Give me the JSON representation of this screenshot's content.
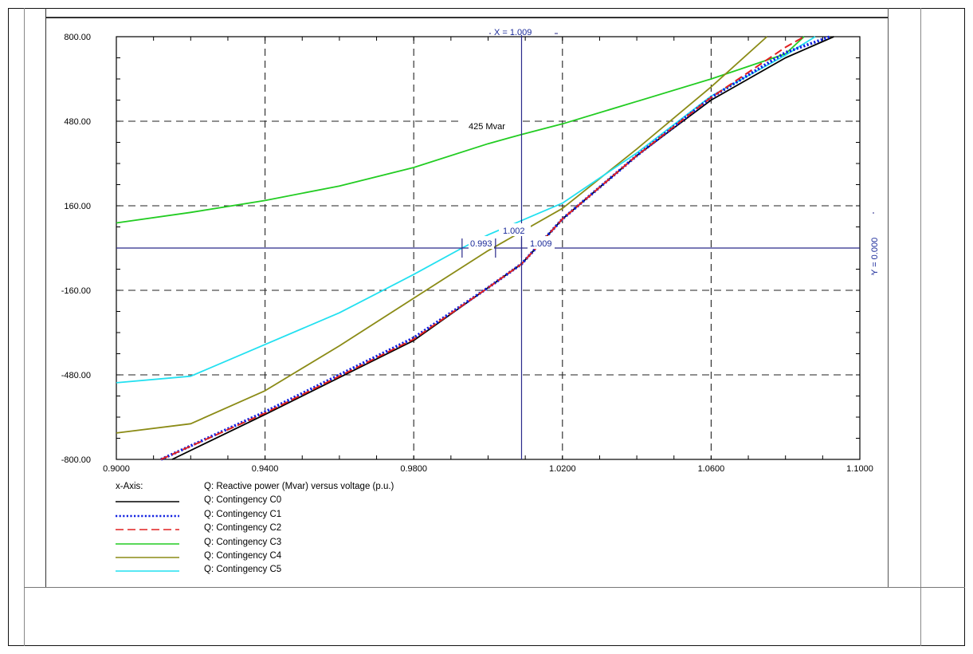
{
  "legend": {
    "axis_label": "x-Axis:",
    "axis_desc": "Q: Reactive power (Mvar) versus voltage (p.u.)"
  },
  "cursor": {
    "x_label": "X =  1.009",
    "y_label": "Y =  0.000",
    "annotation": "425 Mvar",
    "markers": [
      "0.993",
      "1.002",
      "1.009"
    ]
  },
  "chart_data": {
    "type": "line",
    "title": "",
    "xlabel": "Q: Reactive power (Mvar) versus voltage (p.u.)",
    "ylabel": "",
    "xlim": [
      0.9,
      1.1
    ],
    "ylim": [
      -800,
      800
    ],
    "x_ticks": [
      0.9,
      0.94,
      0.98,
      1.02,
      1.06,
      1.1
    ],
    "x_tick_labels": [
      "0.9000",
      "0.9400",
      "0.9800",
      "1.0200",
      "1.0600",
      "1.1000"
    ],
    "y_ticks": [
      800,
      480,
      160,
      -160,
      -480,
      -800
    ],
    "y_tick_labels": [
      "800.00",
      "480.00",
      "160.00",
      "-160.00",
      "-480.00",
      "-800.00"
    ],
    "grid": true,
    "legend_position": "bottom-left",
    "series": [
      {
        "name": "Q: Contingency C0",
        "color": "#000000",
        "dash": "solid",
        "x": [
          0.915,
          0.94,
          0.96,
          0.98,
          1.0,
          1.009,
          1.02,
          1.04,
          1.06,
          1.08,
          1.093
        ],
        "y": [
          -800,
          -630,
          -490,
          -350,
          -150,
          -60,
          110,
          350,
          560,
          720,
          800
        ]
      },
      {
        "name": "Q: Contingency C1",
        "color": "#1020e0",
        "dash": "dotted",
        "x": [
          0.912,
          0.94,
          0.96,
          0.98,
          1.0,
          1.009,
          1.02,
          1.04,
          1.06,
          1.08,
          1.092
        ],
        "y": [
          -800,
          -620,
          -480,
          -340,
          -150,
          -60,
          110,
          350,
          570,
          740,
          800
        ]
      },
      {
        "name": "Q: Contingency C2",
        "color": "#e02020",
        "dash": "dashed",
        "x": [
          0.912,
          0.94,
          0.96,
          0.98,
          1.0,
          1.009,
          1.02,
          1.04,
          1.06,
          1.08,
          1.085
        ],
        "y": [
          -800,
          -625,
          -485,
          -345,
          -150,
          -60,
          110,
          350,
          570,
          760,
          800
        ]
      },
      {
        "name": "Q: Contingency C3",
        "color": "#22cc22",
        "dash": "solid",
        "x": [
          0.9,
          0.92,
          0.94,
          0.96,
          0.98,
          1.0,
          1.009,
          1.02,
          1.04,
          1.06,
          1.08,
          1.085
        ],
        "y": [
          95,
          135,
          180,
          235,
          305,
          395,
          430,
          470,
          555,
          640,
          735,
          800
        ]
      },
      {
        "name": "Q: Contingency C4",
        "color": "#8b8b16",
        "dash": "solid",
        "x": [
          0.9,
          0.92,
          0.94,
          0.96,
          0.98,
          1.0,
          1.02,
          1.04,
          1.06,
          1.075
        ],
        "y": [
          -700,
          -665,
          -540,
          -370,
          -190,
          -10,
          150,
          375,
          610,
          800
        ]
      },
      {
        "name": "Q: Contingency C5",
        "color": "#22e0f0",
        "dash": "solid",
        "x": [
          0.9,
          0.92,
          0.94,
          0.96,
          0.98,
          0.993,
          1.0,
          1.02,
          1.04,
          1.06,
          1.08,
          1.088
        ],
        "y": [
          -510,
          -485,
          -365,
          -245,
          -100,
          0,
          50,
          170,
          360,
          575,
          730,
          800
        ]
      }
    ]
  }
}
